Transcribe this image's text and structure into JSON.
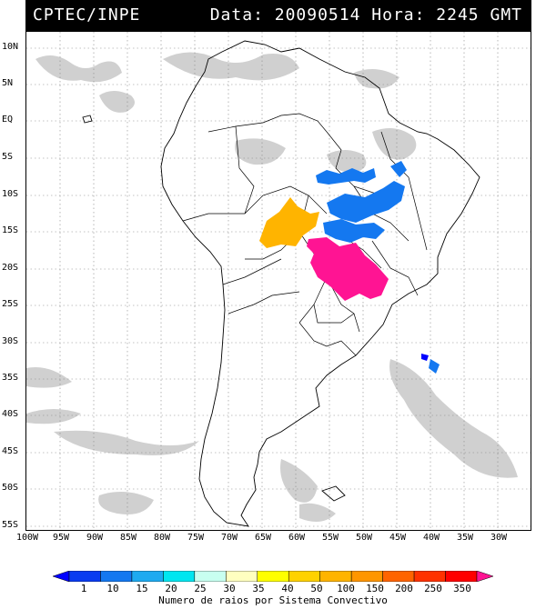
{
  "header": {
    "source": "CPTEC/INPE",
    "datetime": "Data: 20090514 Hora: 2245 GMT"
  },
  "axes": {
    "lat_labels": [
      "10N",
      "5N",
      "EQ",
      "5S",
      "10S",
      "15S",
      "20S",
      "25S",
      "30S",
      "35S",
      "40S",
      "45S",
      "50S",
      "55S"
    ],
    "lon_labels": [
      "100W",
      "95W",
      "90W",
      "85W",
      "80W",
      "75W",
      "70W",
      "65W",
      "60W",
      "55W",
      "50W",
      "45W",
      "40W",
      "35W",
      "30W"
    ]
  },
  "legend": {
    "title": "Numero de raios por Sistema Convectivo",
    "values": [
      "1",
      "10",
      "15",
      "20",
      "25",
      "30",
      "35",
      "40",
      "50",
      "100",
      "150",
      "200",
      "250",
      "350"
    ],
    "colors": [
      "#0000ff",
      "#0a3cf0",
      "#1478f0",
      "#1eaaf0",
      "#00e6f0",
      "#c8fff0",
      "#ffffc0",
      "#ffff00",
      "#ffd200",
      "#ffb400",
      "#ff9600",
      "#ff6400",
      "#ff3200",
      "#ff0000",
      "#ff1493"
    ]
  },
  "colors": {
    "cloud": "#c8c8c8",
    "cell_blue": "#1478f0",
    "cell_orange": "#ffb400",
    "cell_pink": "#ff1493"
  }
}
